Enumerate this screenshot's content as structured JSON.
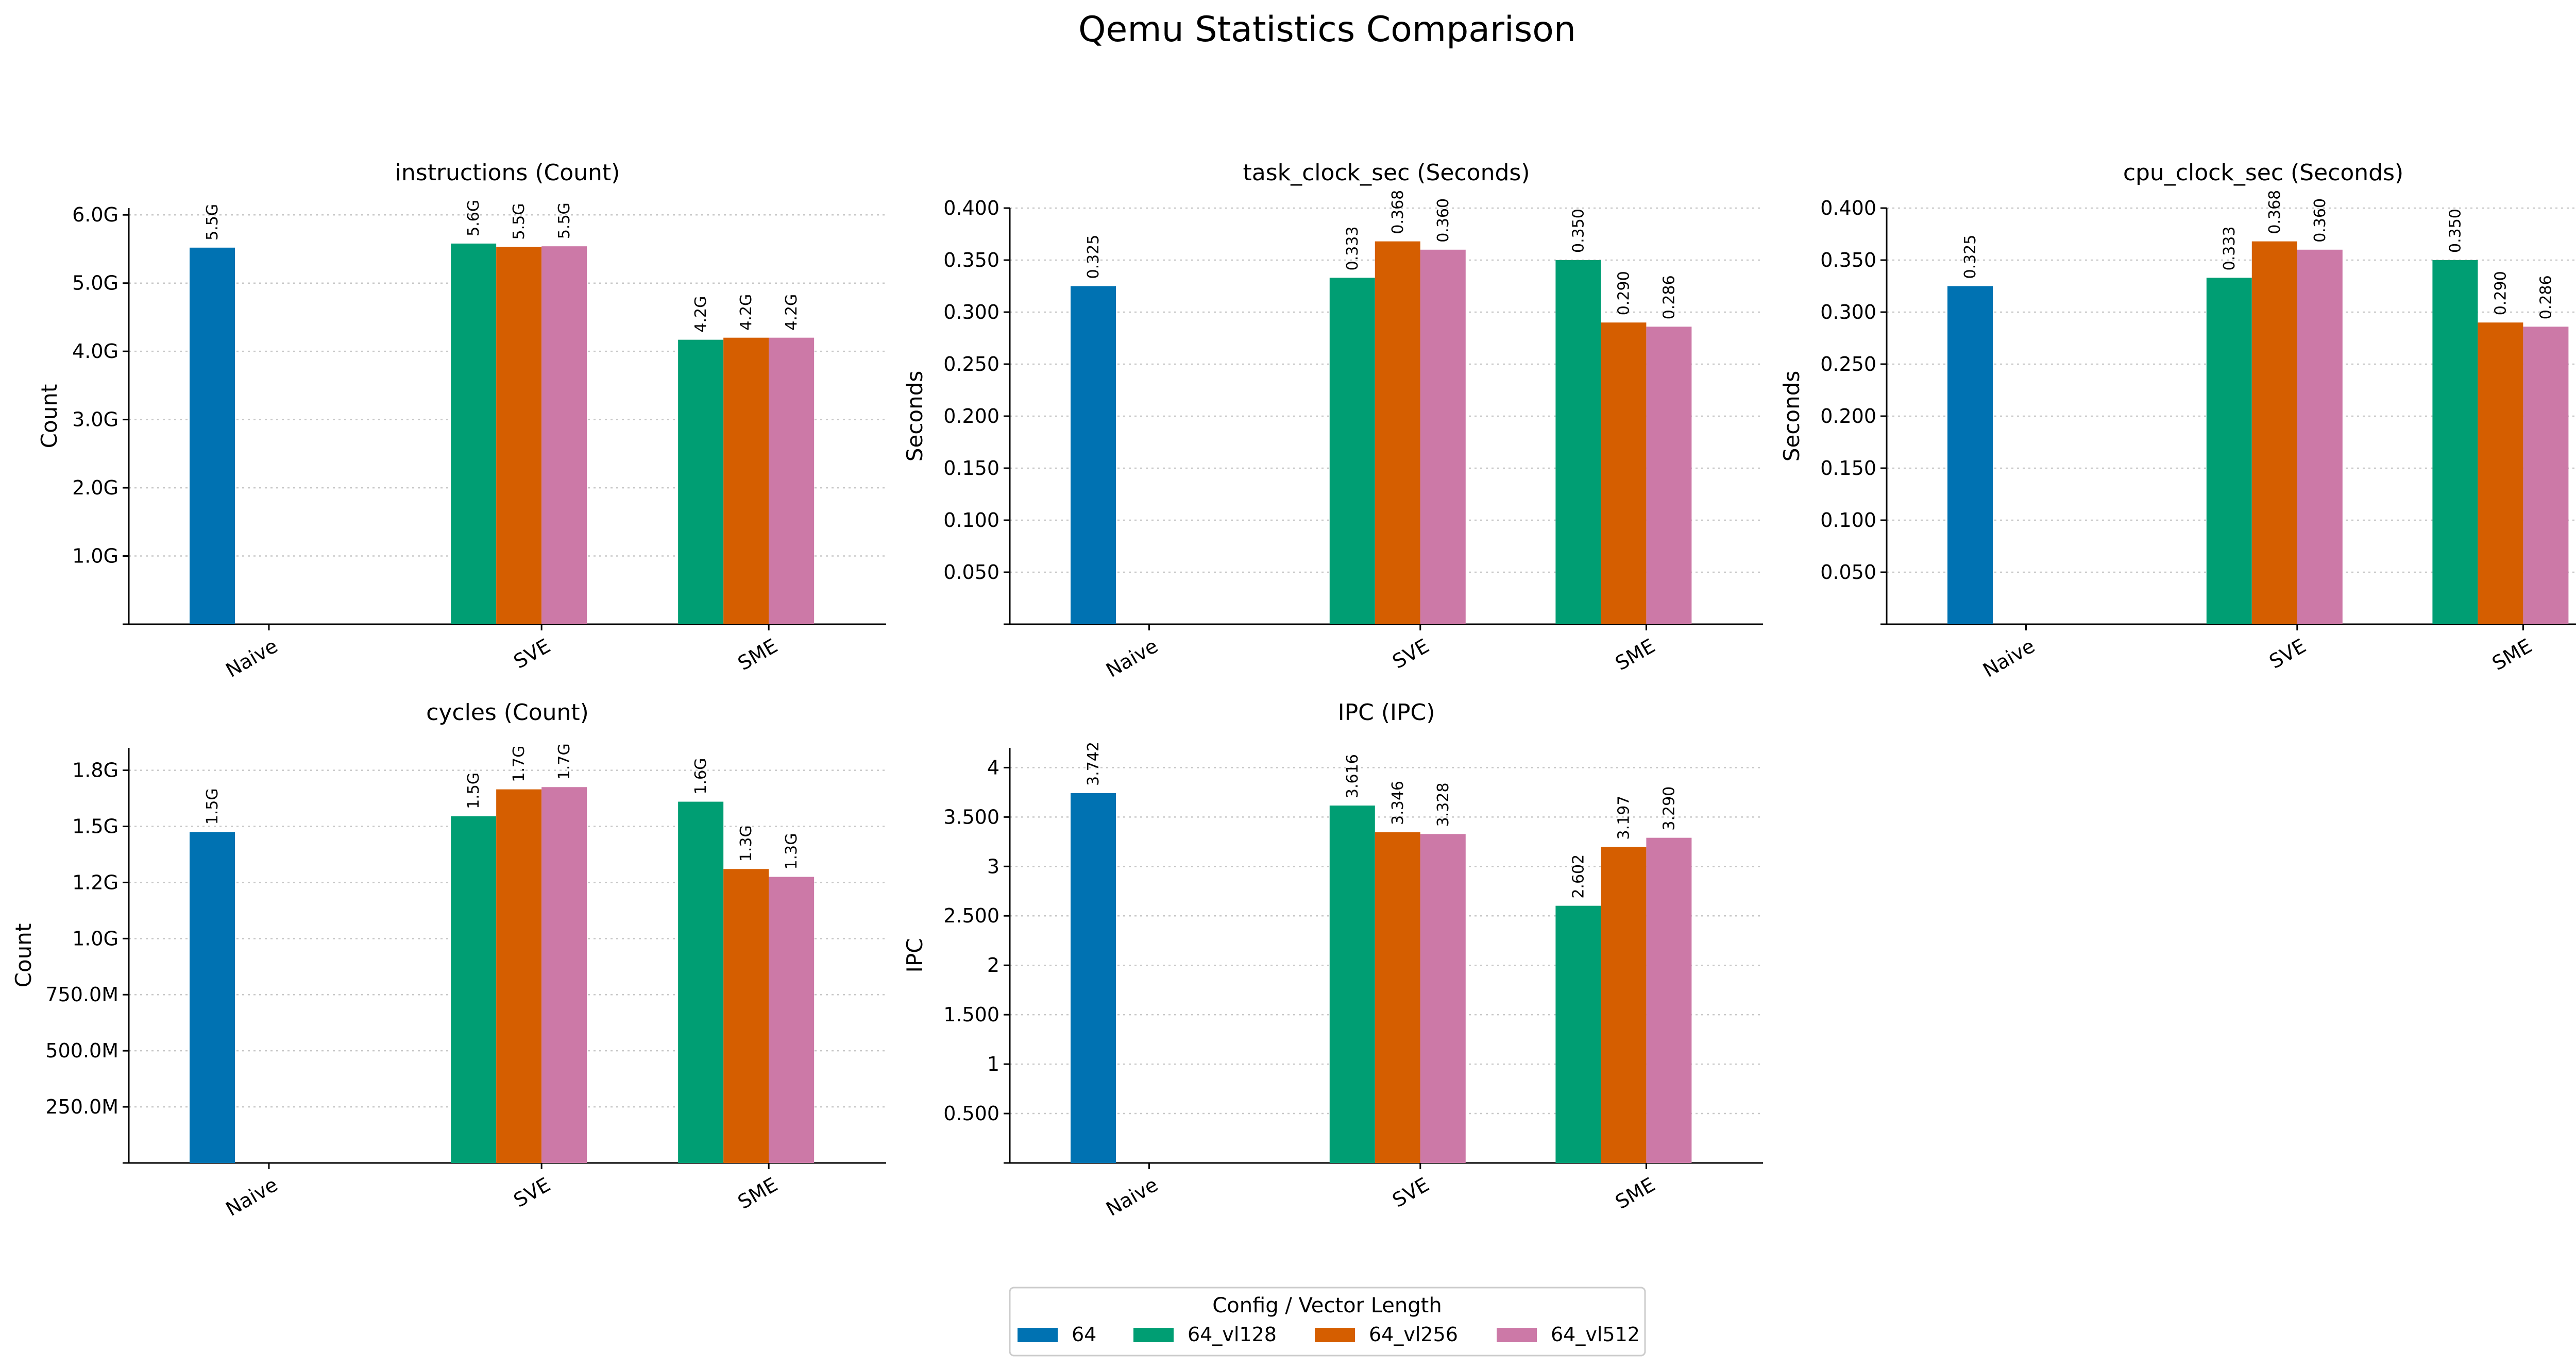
{
  "figure_title": "Qemu Statistics Comparison",
  "legend": {
    "title": "Config / Vector Length",
    "placement": "bottom-center",
    "entries": [
      {
        "name": "64",
        "color": "#0072b2"
      },
      {
        "name": "64_vl128",
        "color": "#009e73"
      },
      {
        "name": "64_vl256",
        "color": "#d55e00"
      },
      {
        "name": "64_vl512",
        "color": "#cc79a7"
      }
    ]
  },
  "chart_data": [
    {
      "type": "bar",
      "title": "instructions (Count)",
      "ylabel": "Count",
      "categories": [
        "Naive",
        "SVE",
        "SME"
      ],
      "ylim": [
        0,
        6100000000
      ],
      "yticks": [
        1000000000,
        2000000000,
        3000000000,
        4000000000,
        5000000000,
        6000000000
      ],
      "ytick_labels": [
        "1.0G",
        "2.0G",
        "3.0G",
        "4.0G",
        "5.0G",
        "6.0G"
      ],
      "grid": "y-dotted",
      "series": [
        {
          "name": "64",
          "values": [
            5520000000,
            null,
            null
          ],
          "labels": [
            "5.5G",
            "",
            ""
          ]
        },
        {
          "name": "64_vl128",
          "values": [
            null,
            5580000000,
            4170000000
          ],
          "labels": [
            "",
            "5.6G",
            "4.2G"
          ]
        },
        {
          "name": "64_vl256",
          "values": [
            null,
            5530000000,
            4200000000
          ],
          "labels": [
            "",
            "5.5G",
            "4.2G"
          ]
        },
        {
          "name": "64_vl512",
          "values": [
            null,
            5540000000,
            4200000000
          ],
          "labels": [
            "",
            "5.5G",
            "4.2G"
          ]
        }
      ]
    },
    {
      "type": "bar",
      "title": "task_clock_sec (Seconds)",
      "ylabel": "Seconds",
      "categories": [
        "Naive",
        "SVE",
        "SME"
      ],
      "ylim": [
        0,
        0.4
      ],
      "yticks": [
        0.05,
        0.1,
        0.15,
        0.2,
        0.25,
        0.3,
        0.35,
        0.4
      ],
      "ytick_labels": [
        "0.050",
        "0.100",
        "0.150",
        "0.200",
        "0.250",
        "0.300",
        "0.350",
        "0.400"
      ],
      "grid": "y-dotted",
      "series": [
        {
          "name": "64",
          "values": [
            0.325,
            null,
            null
          ],
          "labels": [
            "0.325",
            "",
            ""
          ]
        },
        {
          "name": "64_vl128",
          "values": [
            null,
            0.333,
            0.35
          ],
          "labels": [
            "",
            "0.333",
            "0.350"
          ]
        },
        {
          "name": "64_vl256",
          "values": [
            null,
            0.368,
            0.29
          ],
          "labels": [
            "",
            "0.368",
            "0.290"
          ]
        },
        {
          "name": "64_vl512",
          "values": [
            null,
            0.36,
            0.286
          ],
          "labels": [
            "",
            "0.360",
            "0.286"
          ]
        }
      ]
    },
    {
      "type": "bar",
      "title": "cpu_clock_sec (Seconds)",
      "ylabel": "Seconds",
      "categories": [
        "Naive",
        "SVE",
        "SME"
      ],
      "ylim": [
        0,
        0.4
      ],
      "yticks": [
        0.05,
        0.1,
        0.15,
        0.2,
        0.25,
        0.3,
        0.35,
        0.4
      ],
      "ytick_labels": [
        "0.050",
        "0.100",
        "0.150",
        "0.200",
        "0.250",
        "0.300",
        "0.350",
        "0.400"
      ],
      "grid": "y-dotted",
      "series": [
        {
          "name": "64",
          "values": [
            0.325,
            null,
            null
          ],
          "labels": [
            "0.325",
            "",
            ""
          ]
        },
        {
          "name": "64_vl128",
          "values": [
            null,
            0.333,
            0.35
          ],
          "labels": [
            "",
            "0.333",
            "0.350"
          ]
        },
        {
          "name": "64_vl256",
          "values": [
            null,
            0.368,
            0.29
          ],
          "labels": [
            "",
            "0.368",
            "0.290"
          ]
        },
        {
          "name": "64_vl512",
          "values": [
            null,
            0.36,
            0.286
          ],
          "labels": [
            "",
            "0.360",
            "0.286"
          ]
        }
      ]
    },
    {
      "type": "bar",
      "title": "cycles (Count)",
      "ylabel": "Count",
      "categories": [
        "Naive",
        "SVE",
        "SME"
      ],
      "ylim": [
        0,
        1850000000
      ],
      "yticks": [
        250000000,
        500000000,
        750000000,
        1000000000,
        1250000000,
        1500000000,
        1750000000
      ],
      "ytick_labels": [
        "250.0M",
        "500.0M",
        "750.0M",
        "1.0G",
        "1.2G",
        "1.5G",
        "1.8G"
      ],
      "grid": "y-dotted",
      "series": [
        {
          "name": "64",
          "values": [
            1475000000,
            null,
            null
          ],
          "labels": [
            "1.5G",
            "",
            ""
          ]
        },
        {
          "name": "64_vl128",
          "values": [
            null,
            1545000000,
            1610000000
          ],
          "labels": [
            "",
            "1.5G",
            "1.6G"
          ]
        },
        {
          "name": "64_vl256",
          "values": [
            null,
            1665000000,
            1310000000
          ],
          "labels": [
            "",
            "1.7G",
            "1.3G"
          ]
        },
        {
          "name": "64_vl512",
          "values": [
            null,
            1675000000,
            1275000000
          ],
          "labels": [
            "",
            "1.7G",
            "1.3G"
          ]
        }
      ]
    },
    {
      "type": "bar",
      "title": "IPC (IPC)",
      "ylabel": "IPC",
      "categories": [
        "Naive",
        "SVE",
        "SME"
      ],
      "ylim": [
        0,
        4.2
      ],
      "yticks": [
        0.5,
        1,
        1.5,
        2,
        2.5,
        3,
        3.5,
        4
      ],
      "ytick_labels": [
        "0.500",
        "1",
        "1.500",
        "2",
        "2.500",
        "3",
        "3.500",
        "4"
      ],
      "grid": "y-dotted",
      "series": [
        {
          "name": "64",
          "values": [
            3.742,
            null,
            null
          ],
          "labels": [
            "3.742",
            "",
            ""
          ]
        },
        {
          "name": "64_vl128",
          "values": [
            null,
            3.616,
            2.602
          ],
          "labels": [
            "",
            "3.616",
            "2.602"
          ]
        },
        {
          "name": "64_vl256",
          "values": [
            null,
            3.346,
            3.197
          ],
          "labels": [
            "",
            "3.346",
            "3.197"
          ]
        },
        {
          "name": "64_vl512",
          "values": [
            null,
            3.328,
            3.29
          ],
          "labels": [
            "",
            "3.328",
            "3.290"
          ]
        }
      ]
    }
  ]
}
